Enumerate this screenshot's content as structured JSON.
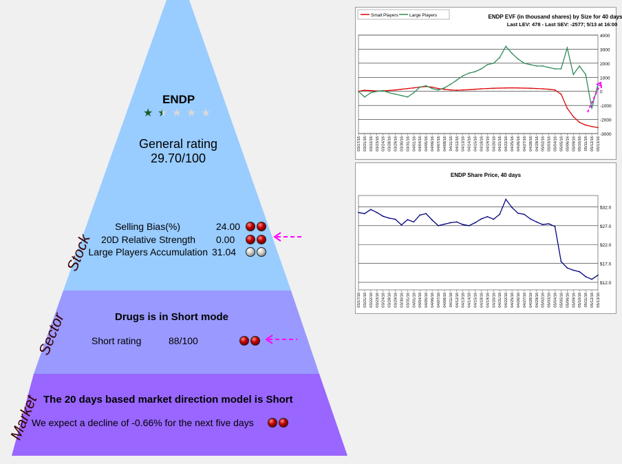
{
  "stock": {
    "ticker": "ENDP",
    "stars": {
      "filled": 1,
      "half": 1,
      "empty": 3
    },
    "general_rating_label": "General rating",
    "general_rating_value": "29.70/100",
    "section_label": "Stock",
    "metrics": [
      {
        "label": "Selling Bias(%)",
        "value": "24.00",
        "balls": [
          "red",
          "red"
        ]
      },
      {
        "label": "20D Relative Strength",
        "value": "0.00",
        "balls": [
          "red",
          "red"
        ]
      },
      {
        "label": "Large Players Accumulation",
        "value": "31.04",
        "balls": [
          "grey",
          "grey"
        ]
      }
    ]
  },
  "sector": {
    "section_label": "Sector",
    "headline": "Drugs is in Short mode",
    "rating_label": "Short rating",
    "rating_value": "88/100",
    "balls": [
      "red",
      "red"
    ]
  },
  "market": {
    "section_label": "Market",
    "headline": "The 20 days based market direction model is Short",
    "expectation": "We expect a decline of -0.66% for the next five days",
    "balls": [
      "red",
      "red"
    ]
  },
  "colors": {
    "stock_band": "#99ccff",
    "sector_band": "#9999ff",
    "market_band": "#9966ff",
    "arrow": "#ff00ff",
    "small_players": "#e00000",
    "large_players": "#2e8b57",
    "share_price": "#000080"
  },
  "chart_data": [
    {
      "type": "line",
      "title": "ENDP EVF (in thousand shares) by Size for 40 days",
      "subtitle": "Last LEV: 478 - Last SEV: -2577; 5/13 at 16:00",
      "legend": "top-left",
      "grid": true,
      "ylim": [
        -3000,
        4000
      ],
      "yticks": [
        "4000",
        "3000",
        "2000",
        "1000",
        "0",
        "-1000",
        "-2000",
        "-3000"
      ],
      "x": [
        "03/17/16",
        "03/21/16",
        "03/22/16",
        "03/23/16",
        "03/24/16",
        "03/28/16",
        "03/29/16",
        "03/30/16",
        "03/31/16",
        "04/01/16",
        "04/04/16",
        "04/05/16",
        "04/06/16",
        "04/07/16",
        "04/08/16",
        "04/11/16",
        "04/12/16",
        "04/13/16",
        "04/14/16",
        "04/15/16",
        "04/18/16",
        "04/19/16",
        "04/20/16",
        "04/21/16",
        "04/22/16",
        "04/25/16",
        "04/26/16",
        "04/27/16",
        "04/28/16",
        "04/29/16",
        "05/02/16",
        "05/03/16",
        "05/04/16",
        "05/05/16",
        "05/06/16",
        "05/09/16",
        "05/10/16",
        "05/11/16",
        "05/12/16",
        "05/13/16"
      ],
      "series": [
        {
          "name": "Small Players",
          "values": [
            0,
            80,
            50,
            30,
            40,
            60,
            100,
            150,
            200,
            250,
            300,
            350,
            300,
            200,
            150,
            100,
            80,
            100,
            120,
            150,
            180,
            200,
            220,
            230,
            240,
            250,
            240,
            230,
            220,
            200,
            180,
            150,
            100,
            -200,
            -1200,
            -1800,
            -2200,
            -2400,
            -2500,
            -2577
          ]
        },
        {
          "name": "Large Players",
          "values": [
            0,
            -400,
            -100,
            0,
            50,
            -100,
            -200,
            -300,
            -400,
            -100,
            300,
            400,
            200,
            100,
            250,
            500,
            800,
            1100,
            1300,
            1400,
            1600,
            1900,
            2000,
            2400,
            3200,
            2700,
            2300,
            2000,
            1900,
            1800,
            1800,
            1700,
            1600,
            1600,
            3100,
            1200,
            1800,
            1200,
            -1200,
            478
          ]
        }
      ]
    },
    {
      "type": "line",
      "title": "ENDP Share Price, 40 days",
      "grid": true,
      "ylim": [
        10,
        35
      ],
      "yticks": [
        "$32.0",
        "$27.0",
        "$22.0",
        "$17.0",
        "$12.0"
      ],
      "x": [
        "03/17/16",
        "03/21/16",
        "03/22/16",
        "03/23/16",
        "03/24/16",
        "03/28/16",
        "03/29/16",
        "03/30/16",
        "03/31/16",
        "04/01/16",
        "04/04/16",
        "04/05/16",
        "04/06/16",
        "04/07/16",
        "04/08/16",
        "04/11/16",
        "04/12/16",
        "04/13/16",
        "04/14/16",
        "04/15/16",
        "04/18/16",
        "04/19/16",
        "04/20/16",
        "04/21/16",
        "04/22/16",
        "04/25/16",
        "04/26/16",
        "04/27/16",
        "04/28/16",
        "04/29/16",
        "05/02/16",
        "05/03/16",
        "05/04/16",
        "05/05/16",
        "05/06/16",
        "05/09/16",
        "05/10/16",
        "05/11/16",
        "05/12/16",
        "05/13/16"
      ],
      "series": [
        {
          "name": "",
          "values": [
            30.5,
            30.2,
            31.3,
            30.5,
            29.5,
            29.0,
            28.7,
            27.2,
            28.6,
            28.0,
            29.8,
            30.2,
            28.5,
            27.0,
            27.4,
            27.8,
            28.0,
            27.3,
            27.0,
            27.8,
            28.8,
            29.4,
            28.7,
            30.0,
            34.0,
            31.8,
            30.3,
            30.0,
            28.8,
            28.0,
            27.3,
            27.5,
            26.8,
            17.5,
            15.8,
            15.2,
            14.8,
            13.5,
            12.8,
            13.9
          ]
        }
      ]
    }
  ]
}
